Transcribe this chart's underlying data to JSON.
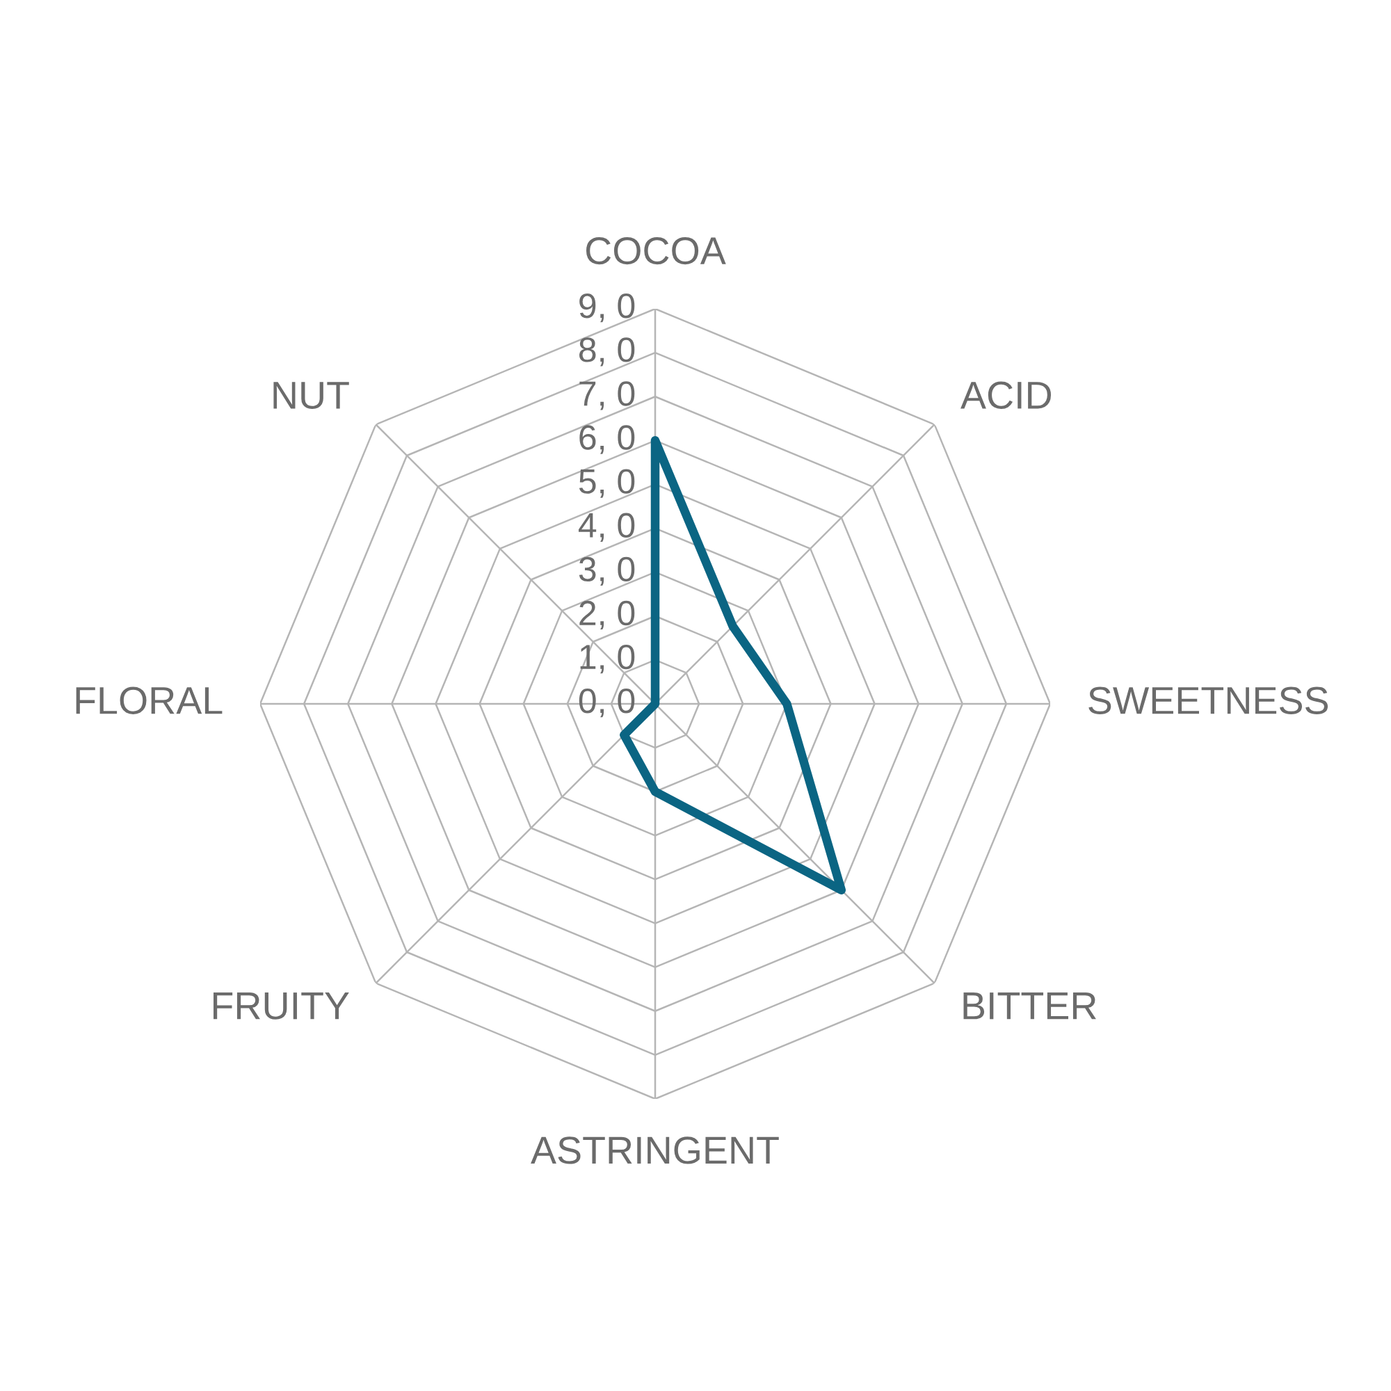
{
  "chart_data": {
    "type": "radar",
    "categories": [
      "COCOA",
      "ACID",
      "SWEETNESS",
      "BITTER",
      "ASTRINGENT",
      "FRUITY",
      "FLORAL",
      "NUT"
    ],
    "series": [
      {
        "color": "#0b6583",
        "values": [
          6.0,
          2.5,
          3.0,
          6.0,
          2.0,
          1.0,
          0,
          0
        ]
      }
    ],
    "ylim": [
      0,
      9
    ],
    "yticks": [
      {
        "value": 0,
        "label": "0, 0"
      },
      {
        "value": 1,
        "label": "1, 0"
      },
      {
        "value": 2,
        "label": "2, 0"
      },
      {
        "value": 3,
        "label": "3, 0"
      },
      {
        "value": 4,
        "label": "4, 0"
      },
      {
        "value": 5,
        "label": "5, 0"
      },
      {
        "value": 6,
        "label": "6, 0"
      },
      {
        "value": 7,
        "label": "7, 0"
      },
      {
        "value": 8,
        "label": "8, 0"
      },
      {
        "value": 9,
        "label": "9, 0"
      }
    ],
    "grid": true
  }
}
